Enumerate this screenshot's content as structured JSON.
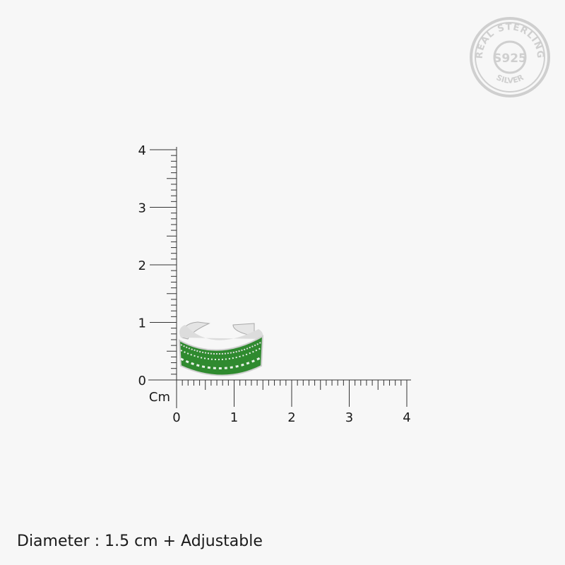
{
  "seal": {
    "top_text": "REAL STERLING",
    "center_text": "S925",
    "bottom_text": "SILVER"
  },
  "scale": {
    "unit_label": "Cm",
    "x_tick_labels": [
      "0",
      "1",
      "2",
      "3",
      "4"
    ],
    "y_tick_labels": [
      "0",
      "1",
      "2",
      "3",
      "4"
    ],
    "range_cm": [
      0,
      4
    ],
    "minor_step_cm": 0.1
  },
  "product": {
    "name": "green enamel toe ring",
    "colors": {
      "enamel": "#2e8b2e",
      "silver": "#d9d9d9"
    }
  },
  "caption": "Diameter : 1.5 cm + Adjustable"
}
